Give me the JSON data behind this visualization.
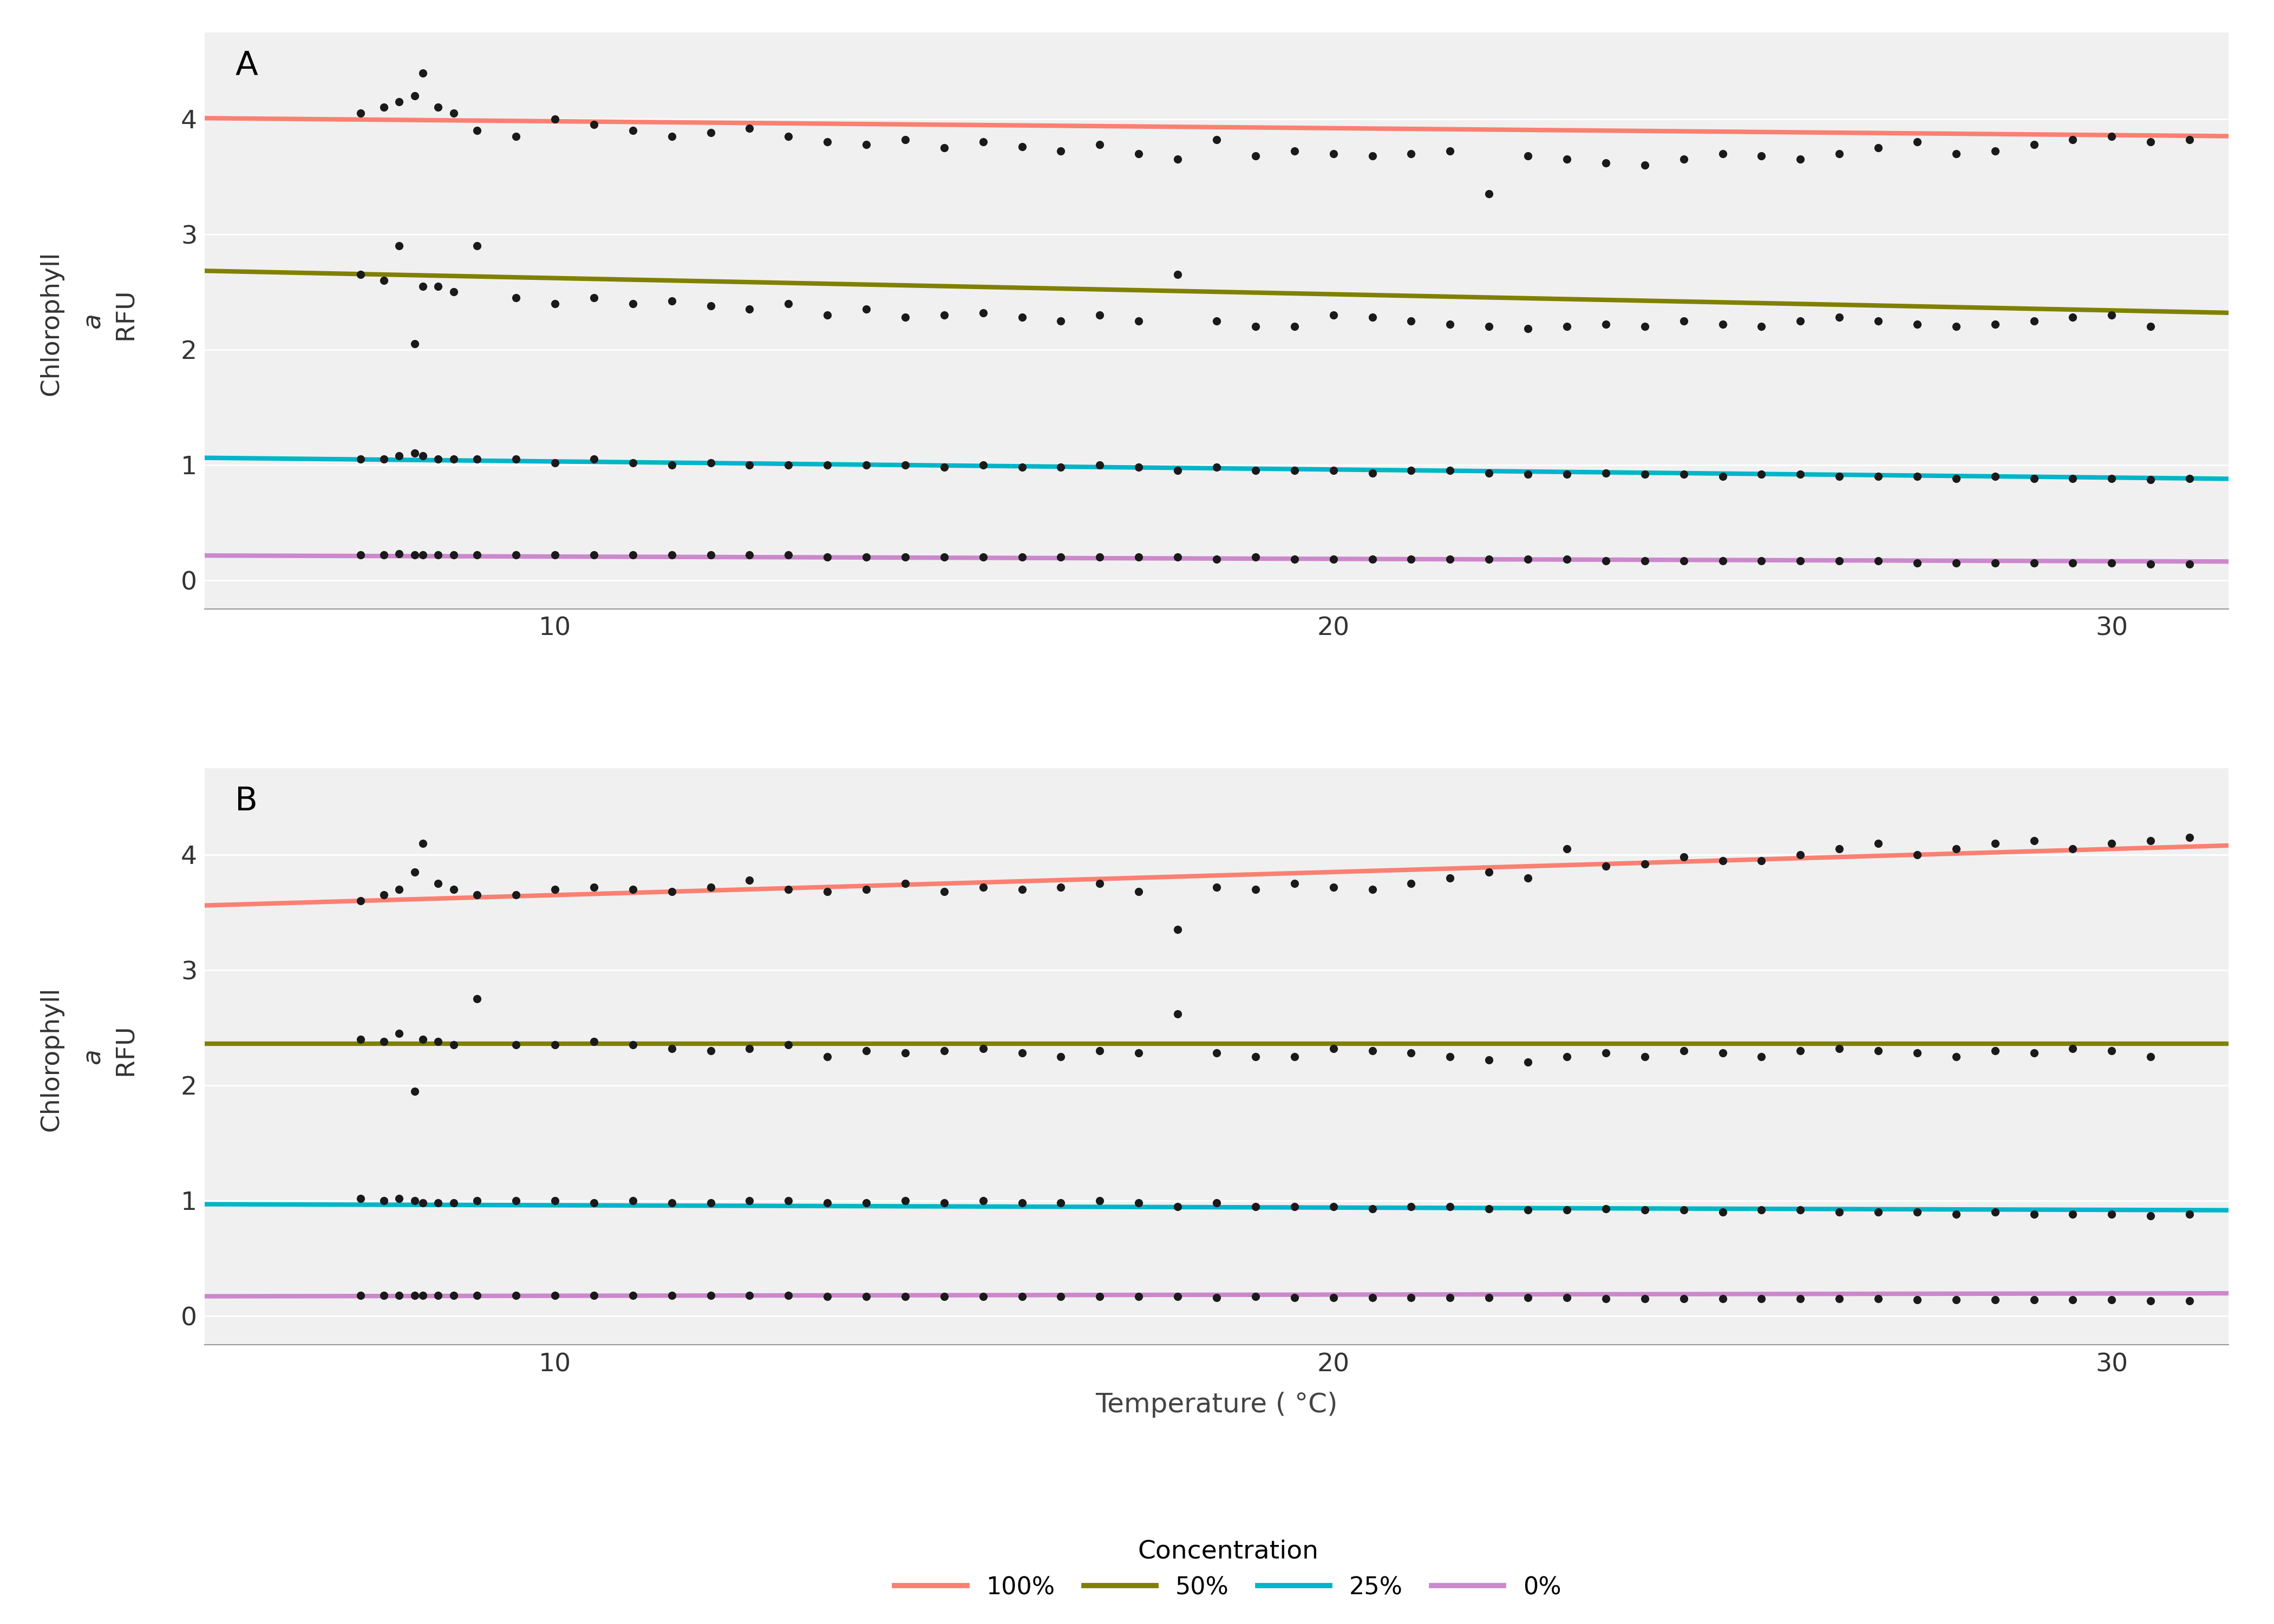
{
  "panel_A_label": "A",
  "panel_B_label": "B",
  "xlabel": "Temperature ( °C)",
  "xlim": [
    5.5,
    31.5
  ],
  "ylim": [
    -0.25,
    4.75
  ],
  "xticks": [
    10,
    20,
    30
  ],
  "yticks": [
    0,
    1,
    2,
    3,
    4
  ],
  "colors": {
    "100pct": "#FA8072",
    "50pct": "#808000",
    "25pct": "#00B5C8",
    "0pct": "#CC88CC"
  },
  "line_width": 6.0,
  "scatter_color": "#1a1a1a",
  "scatter_size": 120,
  "background_color": "#F0F0F0",
  "grid_color": "#FFFFFF",
  "legend_title": "Concentration",
  "legend_labels": [
    "100%",
    "50%",
    "25%",
    "0%"
  ],
  "panel_A": {
    "lines": {
      "100pct": {
        "slope": -0.006,
        "intercept": 4.04
      },
      "50pct": {
        "slope": -0.014,
        "intercept": 2.76
      },
      "25pct": {
        "slope": -0.007,
        "intercept": 1.1
      },
      "0pct": {
        "slope": -0.002,
        "intercept": 0.225
      }
    },
    "scatter": {
      "100pct": {
        "x": [
          7.5,
          7.8,
          8.0,
          8.2,
          8.3,
          8.5,
          8.7,
          9.0,
          9.5,
          10.0,
          10.5,
          11.0,
          11.5,
          12.0,
          12.5,
          13.0,
          13.5,
          14.0,
          14.5,
          15.0,
          15.5,
          16.0,
          16.5,
          17.0,
          17.5,
          18.0,
          18.5,
          19.0,
          19.5,
          20.0,
          20.5,
          21.0,
          21.5,
          22.0,
          22.5,
          23.0,
          23.5,
          24.0,
          24.5,
          25.0,
          25.5,
          26.0,
          26.5,
          27.0,
          27.5,
          28.0,
          28.5,
          29.0,
          29.5,
          30.0,
          30.5,
          31.0
        ],
        "y": [
          4.05,
          4.1,
          4.15,
          4.2,
          4.4,
          4.1,
          4.05,
          3.9,
          3.85,
          4.0,
          3.95,
          3.9,
          3.85,
          3.88,
          3.92,
          3.85,
          3.8,
          3.78,
          3.82,
          3.75,
          3.8,
          3.76,
          3.72,
          3.78,
          3.7,
          3.65,
          3.82,
          3.68,
          3.72,
          3.7,
          3.68,
          3.7,
          3.72,
          3.35,
          3.68,
          3.65,
          3.62,
          3.6,
          3.65,
          3.7,
          3.68,
          3.65,
          3.7,
          3.75,
          3.8,
          3.7,
          3.72,
          3.78,
          3.82,
          3.85,
          3.8,
          3.82
        ]
      },
      "50pct": {
        "x": [
          7.5,
          7.8,
          8.0,
          8.2,
          8.3,
          8.5,
          8.7,
          9.0,
          9.5,
          10.0,
          10.5,
          11.0,
          11.5,
          12.0,
          12.5,
          13.0,
          13.5,
          14.0,
          14.5,
          15.0,
          15.5,
          16.0,
          16.5,
          17.0,
          17.5,
          18.0,
          18.5,
          19.0,
          19.5,
          20.0,
          20.5,
          21.0,
          21.5,
          22.0,
          22.5,
          23.0,
          23.5,
          24.0,
          24.5,
          25.0,
          25.5,
          26.0,
          26.5,
          27.0,
          27.5,
          28.0,
          28.5,
          29.0,
          29.5,
          30.0,
          30.5
        ],
        "y": [
          2.65,
          2.6,
          2.9,
          2.05,
          2.55,
          2.55,
          2.5,
          2.9,
          2.45,
          2.4,
          2.45,
          2.4,
          2.42,
          2.38,
          2.35,
          2.4,
          2.3,
          2.35,
          2.28,
          2.3,
          2.32,
          2.28,
          2.25,
          2.3,
          2.25,
          2.65,
          2.25,
          2.2,
          2.2,
          2.3,
          2.28,
          2.25,
          2.22,
          2.2,
          2.18,
          2.2,
          2.22,
          2.2,
          2.25,
          2.22,
          2.2,
          2.25,
          2.28,
          2.25,
          2.22,
          2.2,
          2.22,
          2.25,
          2.28,
          2.3,
          2.2
        ]
      },
      "25pct": {
        "x": [
          7.5,
          7.8,
          8.0,
          8.2,
          8.3,
          8.5,
          8.7,
          9.0,
          9.5,
          10.0,
          10.5,
          11.0,
          11.5,
          12.0,
          12.5,
          13.0,
          13.5,
          14.0,
          14.5,
          15.0,
          15.5,
          16.0,
          16.5,
          17.0,
          17.5,
          18.0,
          18.5,
          19.0,
          19.5,
          20.0,
          20.5,
          21.0,
          21.5,
          22.0,
          22.5,
          23.0,
          23.5,
          24.0,
          24.5,
          25.0,
          25.5,
          26.0,
          26.5,
          27.0,
          27.5,
          28.0,
          28.5,
          29.0,
          29.5,
          30.0,
          30.5,
          31.0
        ],
        "y": [
          1.05,
          1.05,
          1.08,
          1.1,
          1.08,
          1.05,
          1.05,
          1.05,
          1.05,
          1.02,
          1.05,
          1.02,
          1.0,
          1.02,
          1.0,
          1.0,
          1.0,
          1.0,
          1.0,
          0.98,
          1.0,
          0.98,
          0.98,
          1.0,
          0.98,
          0.95,
          0.98,
          0.95,
          0.95,
          0.95,
          0.93,
          0.95,
          0.95,
          0.93,
          0.92,
          0.92,
          0.93,
          0.92,
          0.92,
          0.9,
          0.92,
          0.92,
          0.9,
          0.9,
          0.9,
          0.88,
          0.9,
          0.88,
          0.88,
          0.88,
          0.87,
          0.88
        ]
      },
      "0pct": {
        "x": [
          7.5,
          7.8,
          8.0,
          8.2,
          8.3,
          8.5,
          8.7,
          9.0,
          9.5,
          10.0,
          10.5,
          11.0,
          11.5,
          12.0,
          12.5,
          13.0,
          13.5,
          14.0,
          14.5,
          15.0,
          15.5,
          16.0,
          16.5,
          17.0,
          17.5,
          18.0,
          18.5,
          19.0,
          19.5,
          20.0,
          20.5,
          21.0,
          21.5,
          22.0,
          22.5,
          23.0,
          23.5,
          24.0,
          24.5,
          25.0,
          25.5,
          26.0,
          26.5,
          27.0,
          27.5,
          28.0,
          28.5,
          29.0,
          29.5,
          30.0,
          30.5,
          31.0
        ],
        "y": [
          0.22,
          0.22,
          0.23,
          0.22,
          0.22,
          0.22,
          0.22,
          0.22,
          0.22,
          0.22,
          0.22,
          0.22,
          0.22,
          0.22,
          0.22,
          0.22,
          0.2,
          0.2,
          0.2,
          0.2,
          0.2,
          0.2,
          0.2,
          0.2,
          0.2,
          0.2,
          0.18,
          0.2,
          0.18,
          0.18,
          0.18,
          0.18,
          0.18,
          0.18,
          0.18,
          0.18,
          0.17,
          0.17,
          0.17,
          0.17,
          0.17,
          0.17,
          0.17,
          0.17,
          0.15,
          0.15,
          0.15,
          0.15,
          0.15,
          0.15,
          0.14,
          0.14
        ]
      }
    }
  },
  "panel_B": {
    "lines": {
      "100pct": {
        "slope": 0.02,
        "intercept": 3.45
      },
      "50pct": {
        "slope": 0.0,
        "intercept": 2.36
      },
      "25pct": {
        "slope": -0.002,
        "intercept": 0.98
      },
      "0pct": {
        "slope": 0.001,
        "intercept": 0.165
      }
    },
    "scatter": {
      "100pct": {
        "x": [
          7.5,
          7.8,
          8.0,
          8.2,
          8.3,
          8.5,
          8.7,
          9.0,
          9.5,
          10.0,
          10.5,
          11.0,
          11.5,
          12.0,
          12.5,
          13.0,
          13.5,
          14.0,
          14.5,
          15.0,
          15.5,
          16.0,
          16.5,
          17.0,
          17.5,
          18.0,
          18.5,
          19.0,
          19.5,
          20.0,
          20.5,
          21.0,
          21.5,
          22.0,
          22.5,
          23.0,
          23.5,
          24.0,
          24.5,
          25.0,
          25.5,
          26.0,
          26.5,
          27.0,
          27.5,
          28.0,
          28.5,
          29.0,
          29.5,
          30.0,
          30.5,
          31.0
        ],
        "y": [
          3.6,
          3.65,
          3.7,
          3.85,
          4.1,
          3.75,
          3.7,
          3.65,
          3.65,
          3.7,
          3.72,
          3.7,
          3.68,
          3.72,
          3.78,
          3.7,
          3.68,
          3.7,
          3.75,
          3.68,
          3.72,
          3.7,
          3.72,
          3.75,
          3.68,
          3.35,
          3.72,
          3.7,
          3.75,
          3.72,
          3.7,
          3.75,
          3.8,
          3.85,
          3.8,
          4.05,
          3.9,
          3.92,
          3.98,
          3.95,
          3.95,
          4.0,
          4.05,
          4.1,
          4.0,
          4.05,
          4.1,
          4.12,
          4.05,
          4.1,
          4.12,
          4.15
        ]
      },
      "50pct": {
        "x": [
          7.5,
          7.8,
          8.0,
          8.2,
          8.3,
          8.5,
          8.7,
          9.0,
          9.5,
          10.0,
          10.5,
          11.0,
          11.5,
          12.0,
          12.5,
          13.0,
          13.5,
          14.0,
          14.5,
          15.0,
          15.5,
          16.0,
          16.5,
          17.0,
          17.5,
          18.0,
          18.5,
          19.0,
          19.5,
          20.0,
          20.5,
          21.0,
          21.5,
          22.0,
          22.5,
          23.0,
          23.5,
          24.0,
          24.5,
          25.0,
          25.5,
          26.0,
          26.5,
          27.0,
          27.5,
          28.0,
          28.5,
          29.0,
          29.5,
          30.0,
          30.5
        ],
        "y": [
          2.4,
          2.38,
          2.45,
          1.95,
          2.4,
          2.38,
          2.35,
          2.75,
          2.35,
          2.35,
          2.38,
          2.35,
          2.32,
          2.3,
          2.32,
          2.35,
          2.25,
          2.3,
          2.28,
          2.3,
          2.32,
          2.28,
          2.25,
          2.3,
          2.28,
          2.62,
          2.28,
          2.25,
          2.25,
          2.32,
          2.3,
          2.28,
          2.25,
          2.22,
          2.2,
          2.25,
          2.28,
          2.25,
          2.3,
          2.28,
          2.25,
          2.3,
          2.32,
          2.3,
          2.28,
          2.25,
          2.3,
          2.28,
          2.32,
          2.3,
          2.25
        ]
      },
      "25pct": {
        "x": [
          7.5,
          7.8,
          8.0,
          8.2,
          8.3,
          8.5,
          8.7,
          9.0,
          9.5,
          10.0,
          10.5,
          11.0,
          11.5,
          12.0,
          12.5,
          13.0,
          13.5,
          14.0,
          14.5,
          15.0,
          15.5,
          16.0,
          16.5,
          17.0,
          17.5,
          18.0,
          18.5,
          19.0,
          19.5,
          20.0,
          20.5,
          21.0,
          21.5,
          22.0,
          22.5,
          23.0,
          23.5,
          24.0,
          24.5,
          25.0,
          25.5,
          26.0,
          26.5,
          27.0,
          27.5,
          28.0,
          28.5,
          29.0,
          29.5,
          30.0,
          30.5,
          31.0
        ],
        "y": [
          1.02,
          1.0,
          1.02,
          1.0,
          0.98,
          0.98,
          0.98,
          1.0,
          1.0,
          1.0,
          0.98,
          1.0,
          0.98,
          0.98,
          1.0,
          1.0,
          0.98,
          0.98,
          1.0,
          0.98,
          1.0,
          0.98,
          0.98,
          1.0,
          0.98,
          0.95,
          0.98,
          0.95,
          0.95,
          0.95,
          0.93,
          0.95,
          0.95,
          0.93,
          0.92,
          0.92,
          0.93,
          0.92,
          0.92,
          0.9,
          0.92,
          0.92,
          0.9,
          0.9,
          0.9,
          0.88,
          0.9,
          0.88,
          0.88,
          0.88,
          0.87,
          0.88
        ]
      },
      "0pct": {
        "x": [
          7.5,
          7.8,
          8.0,
          8.2,
          8.3,
          8.5,
          8.7,
          9.0,
          9.5,
          10.0,
          10.5,
          11.0,
          11.5,
          12.0,
          12.5,
          13.0,
          13.5,
          14.0,
          14.5,
          15.0,
          15.5,
          16.0,
          16.5,
          17.0,
          17.5,
          18.0,
          18.5,
          19.0,
          19.5,
          20.0,
          20.5,
          21.0,
          21.5,
          22.0,
          22.5,
          23.0,
          23.5,
          24.0,
          24.5,
          25.0,
          25.5,
          26.0,
          26.5,
          27.0,
          27.5,
          28.0,
          28.5,
          29.0,
          29.5,
          30.0,
          30.5,
          31.0
        ],
        "y": [
          0.18,
          0.18,
          0.18,
          0.18,
          0.18,
          0.18,
          0.18,
          0.18,
          0.18,
          0.18,
          0.18,
          0.18,
          0.18,
          0.18,
          0.18,
          0.18,
          0.17,
          0.17,
          0.17,
          0.17,
          0.17,
          0.17,
          0.17,
          0.17,
          0.17,
          0.17,
          0.16,
          0.17,
          0.16,
          0.16,
          0.16,
          0.16,
          0.16,
          0.16,
          0.16,
          0.16,
          0.15,
          0.15,
          0.15,
          0.15,
          0.15,
          0.15,
          0.15,
          0.15,
          0.14,
          0.14,
          0.14,
          0.14,
          0.14,
          0.14,
          0.13,
          0.13
        ]
      }
    }
  }
}
